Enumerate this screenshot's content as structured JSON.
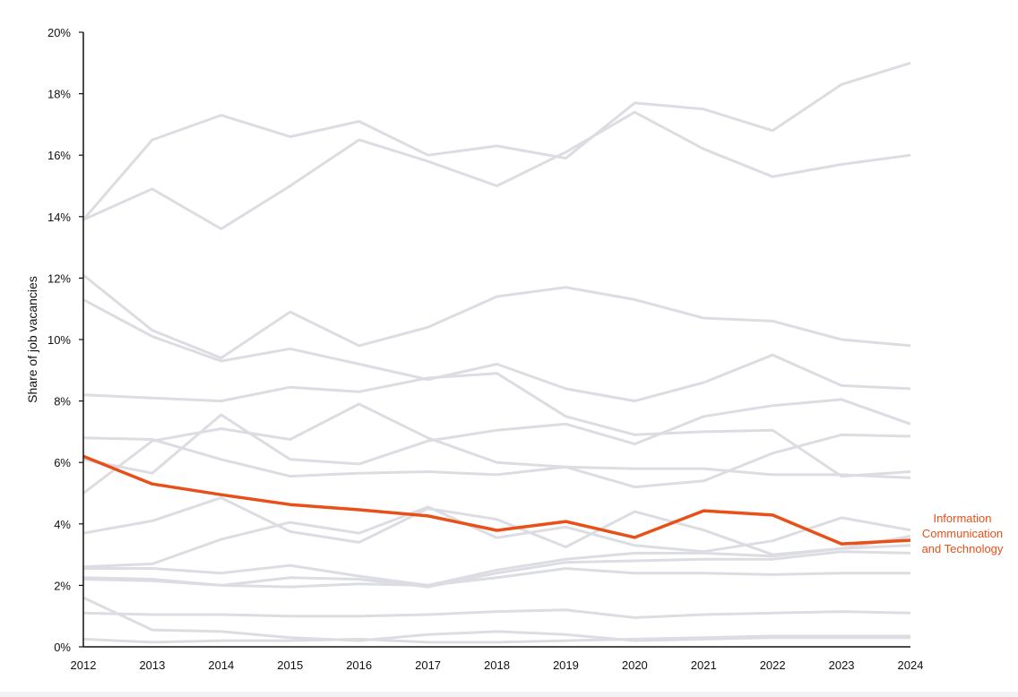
{
  "chart_data": {
    "type": "line",
    "title": "",
    "xlabel": "",
    "ylabel": "Share of job vacancies",
    "x": [
      2012,
      2013,
      2014,
      2015,
      2016,
      2017,
      2018,
      2019,
      2020,
      2021,
      2022,
      2023,
      2024
    ],
    "xlim": [
      2012,
      2024
    ],
    "ylim": [
      0,
      20
    ],
    "y_unit": "%",
    "yticks": [
      0,
      2,
      4,
      6,
      8,
      10,
      12,
      14,
      16,
      18,
      20
    ],
    "ytick_labels": [
      "0%",
      "2%",
      "4%",
      "6%",
      "8%",
      "10%",
      "12%",
      "14%",
      "16%",
      "18%",
      "20%"
    ],
    "xtick_labels": [
      "2012",
      "2013",
      "2014",
      "2015",
      "2016",
      "2017",
      "2018",
      "2019",
      "2020",
      "2021",
      "2022",
      "2023",
      "2024"
    ],
    "grid": false,
    "colors": {
      "highlight": "#e8501a",
      "background_series": "#dcdde3",
      "axis": "#111111"
    },
    "highlight": {
      "name": "Information Communication and Technology",
      "label_lines": [
        "Information",
        "Communication",
        "and Technology"
      ],
      "values": [
        6.2,
        5.3,
        4.95,
        4.63,
        4.46,
        4.26,
        3.79,
        4.08,
        3.56,
        4.43,
        4.29,
        3.35,
        3.47
      ]
    },
    "series": [
      {
        "values": [
          13.9,
          16.5,
          17.3,
          16.6,
          17.1,
          16.0,
          16.3,
          15.9,
          17.7,
          17.5,
          16.8,
          18.3,
          19.0
        ]
      },
      {
        "values": [
          13.9,
          14.9,
          13.6,
          15.0,
          16.5,
          15.8,
          15.0,
          16.1,
          17.4,
          16.2,
          15.3,
          15.7,
          16.0
        ]
      },
      {
        "values": [
          12.1,
          10.3,
          9.4,
          10.9,
          9.8,
          10.4,
          11.4,
          11.7,
          11.3,
          10.7,
          10.6,
          10.0,
          9.8
        ]
      },
      {
        "values": [
          11.3,
          10.1,
          9.3,
          9.7,
          9.2,
          8.7,
          9.2,
          8.4,
          8.0,
          8.6,
          9.5,
          8.5,
          8.4
        ]
      },
      {
        "values": [
          8.2,
          8.1,
          8.0,
          8.45,
          8.3,
          8.75,
          8.9,
          7.5,
          6.9,
          7.0,
          7.05,
          5.55,
          5.7
        ]
      },
      {
        "values": [
          6.8,
          6.75,
          6.1,
          5.55,
          5.65,
          5.7,
          5.6,
          5.85,
          5.8,
          5.8,
          5.6,
          5.6,
          5.5
        ]
      },
      {
        "values": [
          5.0,
          6.7,
          7.1,
          6.75,
          7.9,
          6.8,
          6.0,
          5.85,
          5.2,
          5.4,
          6.3,
          6.9,
          6.85
        ]
      },
      {
        "values": [
          6.1,
          5.65,
          7.55,
          6.1,
          5.95,
          6.7,
          7.05,
          7.25,
          6.6,
          7.5,
          7.85,
          8.05,
          7.25
        ]
      },
      {
        "values": [
          3.7,
          4.1,
          4.85,
          3.75,
          3.4,
          4.5,
          4.15,
          3.25,
          4.4,
          3.8,
          3.0,
          3.2,
          3.3
        ]
      },
      {
        "values": [
          2.6,
          2.7,
          3.5,
          4.05,
          3.7,
          4.55,
          3.55,
          3.9,
          3.3,
          3.1,
          3.45,
          4.2,
          3.8
        ]
      },
      {
        "values": [
          2.55,
          2.55,
          2.4,
          2.65,
          2.3,
          2.0,
          2.5,
          2.85,
          3.05,
          3.05,
          2.95,
          3.2,
          3.6
        ]
      },
      {
        "values": [
          2.25,
          2.2,
          2.0,
          2.25,
          2.2,
          1.95,
          2.4,
          2.75,
          2.8,
          2.85,
          2.85,
          3.1,
          3.05
        ]
      },
      {
        "values": [
          2.2,
          2.15,
          2.0,
          1.95,
          2.05,
          2.0,
          2.25,
          2.55,
          2.4,
          2.4,
          2.35,
          2.4,
          2.4
        ]
      },
      {
        "values": [
          1.6,
          0.55,
          0.5,
          0.3,
          0.2,
          0.4,
          0.5,
          0.4,
          0.2,
          0.25,
          0.3,
          0.3,
          0.3
        ]
      },
      {
        "values": [
          1.1,
          1.05,
          1.05,
          1.0,
          1.0,
          1.05,
          1.15,
          1.2,
          0.95,
          1.05,
          1.1,
          1.15,
          1.1
        ]
      },
      {
        "values": [
          0.25,
          0.15,
          0.2,
          0.2,
          0.25,
          0.15,
          0.15,
          0.2,
          0.25,
          0.3,
          0.35,
          0.35,
          0.35
        ]
      }
    ]
  }
}
